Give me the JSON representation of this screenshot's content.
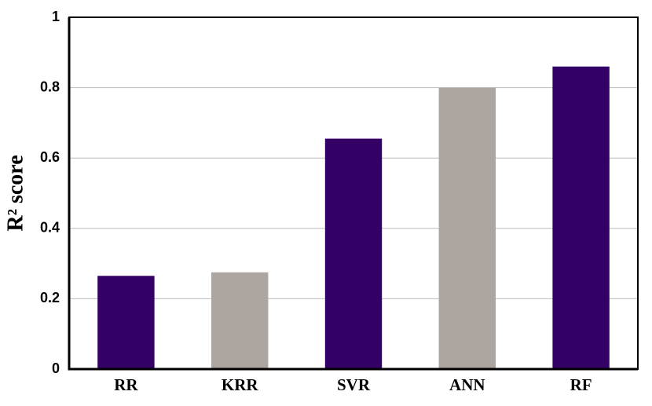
{
  "chart_data": {
    "type": "bar",
    "y_label": "R² score",
    "categories": [
      "RR",
      "KRR",
      "SVR",
      "ANN",
      "RF"
    ],
    "values": [
      0.265,
      0.275,
      0.655,
      0.8,
      0.86
    ],
    "colors": [
      "#330066",
      "#aca5a0",
      "#330066",
      "#aca5a0",
      "#330066"
    ],
    "ylim": [
      0,
      1
    ],
    "yticks": [
      0,
      0.2,
      0.4,
      0.6,
      0.8,
      1
    ],
    "grid": true
  }
}
